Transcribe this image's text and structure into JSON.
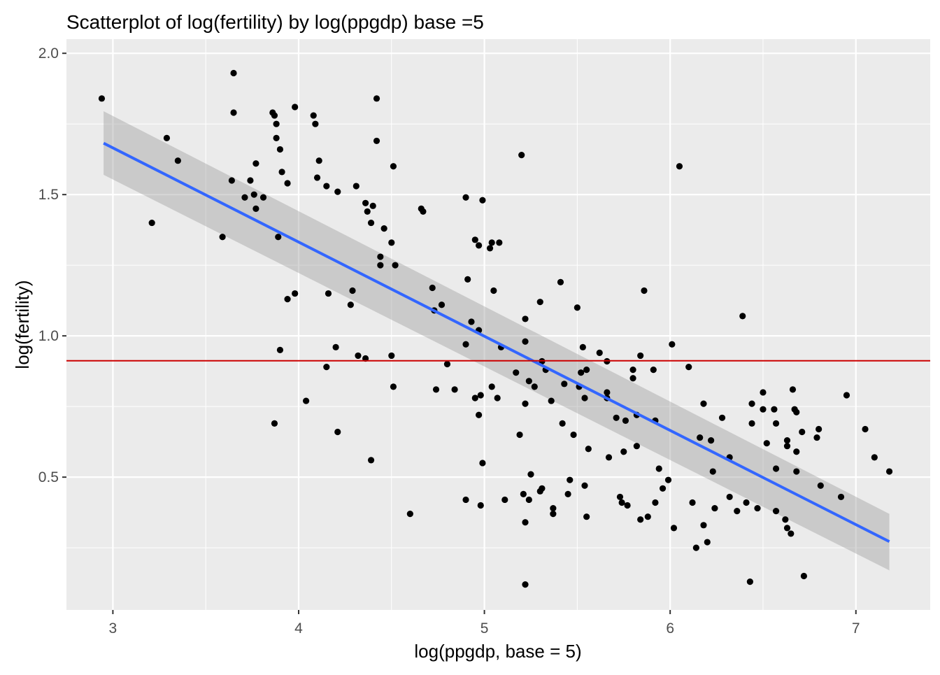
{
  "chart_data": {
    "type": "scatter",
    "title": "Scatterplot of log(fertility) by log(ppgdp) base =5",
    "xlabel": "log(ppgdp, base = 5)",
    "ylabel": "log(fertility)",
    "xlim": [
      2.75,
      7.4
    ],
    "ylim": [
      0.03,
      2.05
    ],
    "x_ticks": [
      3,
      4,
      5,
      6,
      7
    ],
    "x_tick_labels": [
      "3",
      "4",
      "5",
      "6",
      "7"
    ],
    "y_ticks": [
      0.5,
      1.0,
      1.5,
      2.0
    ],
    "y_tick_labels": [
      "0.5",
      "1.0",
      "1.5",
      "2.0"
    ],
    "grid": true,
    "background_color": "#EBEBEB",
    "point_color": "#000000",
    "hline": {
      "y": 0.912,
      "color": "#CC0000"
    },
    "fit_line": {
      "color": "#3366FF",
      "band_color": "#999999",
      "x": [
        2.95,
        7.18
      ],
      "y": [
        1.682,
        0.272
      ],
      "ci_lower": [
        1.57,
        0.17
      ],
      "ci_upper": [
        1.795,
        0.37
      ]
    },
    "points": [
      [
        2.94,
        1.84
      ],
      [
        3.21,
        1.4
      ],
      [
        3.29,
        1.7
      ],
      [
        3.35,
        1.62
      ],
      [
        3.59,
        1.35
      ],
      [
        3.65,
        1.93
      ],
      [
        3.65,
        1.79
      ],
      [
        3.64,
        1.55
      ],
      [
        3.71,
        1.49
      ],
      [
        3.74,
        1.55
      ],
      [
        3.76,
        1.5
      ],
      [
        3.77,
        1.61
      ],
      [
        3.77,
        1.45
      ],
      [
        3.81,
        1.49
      ],
      [
        3.86,
        1.79
      ],
      [
        3.87,
        1.78
      ],
      [
        3.88,
        1.75
      ],
      [
        3.88,
        1.7
      ],
      [
        3.89,
        1.35
      ],
      [
        3.9,
        1.66
      ],
      [
        3.91,
        1.58
      ],
      [
        3.9,
        0.95
      ],
      [
        3.87,
        0.69
      ],
      [
        3.94,
        1.54
      ],
      [
        3.94,
        1.13
      ],
      [
        3.98,
        1.81
      ],
      [
        3.98,
        1.15
      ],
      [
        4.04,
        0.77
      ],
      [
        4.08,
        1.78
      ],
      [
        4.09,
        1.75
      ],
      [
        4.11,
        1.62
      ],
      [
        4.1,
        1.56
      ],
      [
        4.15,
        1.53
      ],
      [
        4.15,
        0.89
      ],
      [
        4.16,
        1.15
      ],
      [
        4.2,
        0.96
      ],
      [
        4.21,
        0.66
      ],
      [
        4.21,
        1.51
      ],
      [
        4.28,
        1.11
      ],
      [
        4.29,
        1.16
      ],
      [
        4.31,
        1.53
      ],
      [
        4.32,
        0.93
      ],
      [
        4.36,
        1.47
      ],
      [
        4.36,
        0.92
      ],
      [
        4.37,
        1.44
      ],
      [
        4.39,
        1.4
      ],
      [
        4.4,
        1.46
      ],
      [
        4.39,
        0.56
      ],
      [
        4.42,
        1.84
      ],
      [
        4.42,
        1.69
      ],
      [
        4.44,
        1.28
      ],
      [
        4.44,
        1.25
      ],
      [
        4.46,
        1.38
      ],
      [
        4.5,
        1.33
      ],
      [
        4.51,
        1.6
      ],
      [
        4.52,
        1.25
      ],
      [
        4.5,
        0.93
      ],
      [
        4.51,
        0.82
      ],
      [
        4.6,
        0.37
      ],
      [
        4.66,
        1.45
      ],
      [
        4.67,
        1.44
      ],
      [
        4.72,
        1.17
      ],
      [
        4.73,
        1.09
      ],
      [
        4.74,
        0.81
      ],
      [
        4.77,
        1.11
      ],
      [
        4.8,
        0.9
      ],
      [
        4.84,
        0.81
      ],
      [
        4.9,
        1.49
      ],
      [
        4.9,
        0.97
      ],
      [
        4.9,
        0.42
      ],
      [
        4.91,
        1.2
      ],
      [
        4.93,
        1.05
      ],
      [
        4.95,
        1.34
      ],
      [
        4.95,
        0.78
      ],
      [
        4.97,
        1.32
      ],
      [
        4.97,
        1.02
      ],
      [
        4.97,
        0.72
      ],
      [
        4.98,
        0.79
      ],
      [
        4.99,
        1.48
      ],
      [
        4.98,
        0.4
      ],
      [
        4.99,
        0.55
      ],
      [
        5.03,
        1.31
      ],
      [
        5.04,
        1.33
      ],
      [
        5.04,
        0.82
      ],
      [
        5.05,
        1.16
      ],
      [
        5.07,
        0.78
      ],
      [
        5.08,
        1.33
      ],
      [
        5.09,
        0.96
      ],
      [
        5.11,
        0.42
      ],
      [
        5.17,
        0.87
      ],
      [
        5.19,
        0.65
      ],
      [
        5.2,
        1.64
      ],
      [
        5.21,
        0.44
      ],
      [
        5.22,
        1.06
      ],
      [
        5.22,
        0.98
      ],
      [
        5.22,
        0.76
      ],
      [
        5.22,
        0.34
      ],
      [
        5.22,
        0.12
      ],
      [
        5.24,
        0.84
      ],
      [
        5.25,
        0.51
      ],
      [
        5.24,
        0.42
      ],
      [
        5.27,
        0.82
      ],
      [
        5.3,
        1.12
      ],
      [
        5.3,
        0.45
      ],
      [
        5.31,
        0.91
      ],
      [
        5.31,
        0.46
      ],
      [
        5.33,
        0.88
      ],
      [
        5.36,
        0.77
      ],
      [
        5.37,
        0.39
      ],
      [
        5.37,
        0.37
      ],
      [
        5.41,
        1.19
      ],
      [
        5.42,
        0.69
      ],
      [
        5.43,
        0.83
      ],
      [
        5.45,
        0.44
      ],
      [
        5.46,
        0.49
      ],
      [
        5.48,
        0.65
      ],
      [
        5.5,
        1.1
      ],
      [
        5.51,
        0.82
      ],
      [
        5.52,
        0.87
      ],
      [
        5.53,
        0.96
      ],
      [
        5.54,
        0.78
      ],
      [
        5.54,
        0.47
      ],
      [
        5.55,
        0.88
      ],
      [
        5.55,
        0.36
      ],
      [
        5.56,
        0.6
      ],
      [
        5.62,
        0.94
      ],
      [
        5.66,
        0.91
      ],
      [
        5.66,
        0.8
      ],
      [
        5.66,
        0.78
      ],
      [
        5.67,
        0.57
      ],
      [
        5.71,
        0.71
      ],
      [
        5.73,
        0.43
      ],
      [
        5.74,
        0.41
      ],
      [
        5.76,
        0.7
      ],
      [
        5.75,
        0.59
      ],
      [
        5.77,
        0.4
      ],
      [
        5.8,
        0.88
      ],
      [
        5.8,
        0.85
      ],
      [
        5.82,
        0.72
      ],
      [
        5.82,
        0.61
      ],
      [
        5.84,
        0.93
      ],
      [
        5.84,
        0.35
      ],
      [
        5.86,
        1.16
      ],
      [
        5.88,
        0.36
      ],
      [
        5.91,
        0.88
      ],
      [
        5.92,
        0.7
      ],
      [
        5.92,
        0.41
      ],
      [
        5.94,
        0.53
      ],
      [
        5.96,
        0.46
      ],
      [
        5.99,
        0.49
      ],
      [
        6.01,
        0.97
      ],
      [
        6.02,
        0.32
      ],
      [
        6.05,
        1.6
      ],
      [
        6.1,
        0.89
      ],
      [
        6.12,
        0.41
      ],
      [
        6.14,
        0.25
      ],
      [
        6.16,
        0.64
      ],
      [
        6.18,
        0.76
      ],
      [
        6.18,
        0.33
      ],
      [
        6.2,
        0.27
      ],
      [
        6.22,
        0.63
      ],
      [
        6.23,
        0.52
      ],
      [
        6.24,
        0.39
      ],
      [
        6.28,
        0.71
      ],
      [
        6.32,
        0.43
      ],
      [
        6.32,
        0.57
      ],
      [
        6.36,
        0.38
      ],
      [
        6.39,
        1.07
      ],
      [
        6.41,
        0.41
      ],
      [
        6.43,
        0.13
      ],
      [
        6.44,
        0.76
      ],
      [
        6.44,
        0.69
      ],
      [
        6.47,
        0.39
      ],
      [
        6.5,
        0.8
      ],
      [
        6.5,
        0.74
      ],
      [
        6.52,
        0.62
      ],
      [
        6.56,
        0.74
      ],
      [
        6.57,
        0.69
      ],
      [
        6.57,
        0.53
      ],
      [
        6.57,
        0.38
      ],
      [
        6.62,
        0.35
      ],
      [
        6.63,
        0.63
      ],
      [
        6.63,
        0.61
      ],
      [
        6.63,
        0.32
      ],
      [
        6.65,
        0.3
      ],
      [
        6.66,
        0.81
      ],
      [
        6.67,
        0.74
      ],
      [
        6.68,
        0.73
      ],
      [
        6.68,
        0.59
      ],
      [
        6.68,
        0.52
      ],
      [
        6.71,
        0.66
      ],
      [
        6.72,
        0.15
      ],
      [
        6.79,
        0.64
      ],
      [
        6.8,
        0.67
      ],
      [
        6.81,
        0.47
      ],
      [
        6.92,
        0.43
      ],
      [
        6.95,
        0.79
      ],
      [
        7.05,
        0.67
      ],
      [
        7.1,
        0.57
      ],
      [
        7.18,
        0.52
      ]
    ]
  }
}
